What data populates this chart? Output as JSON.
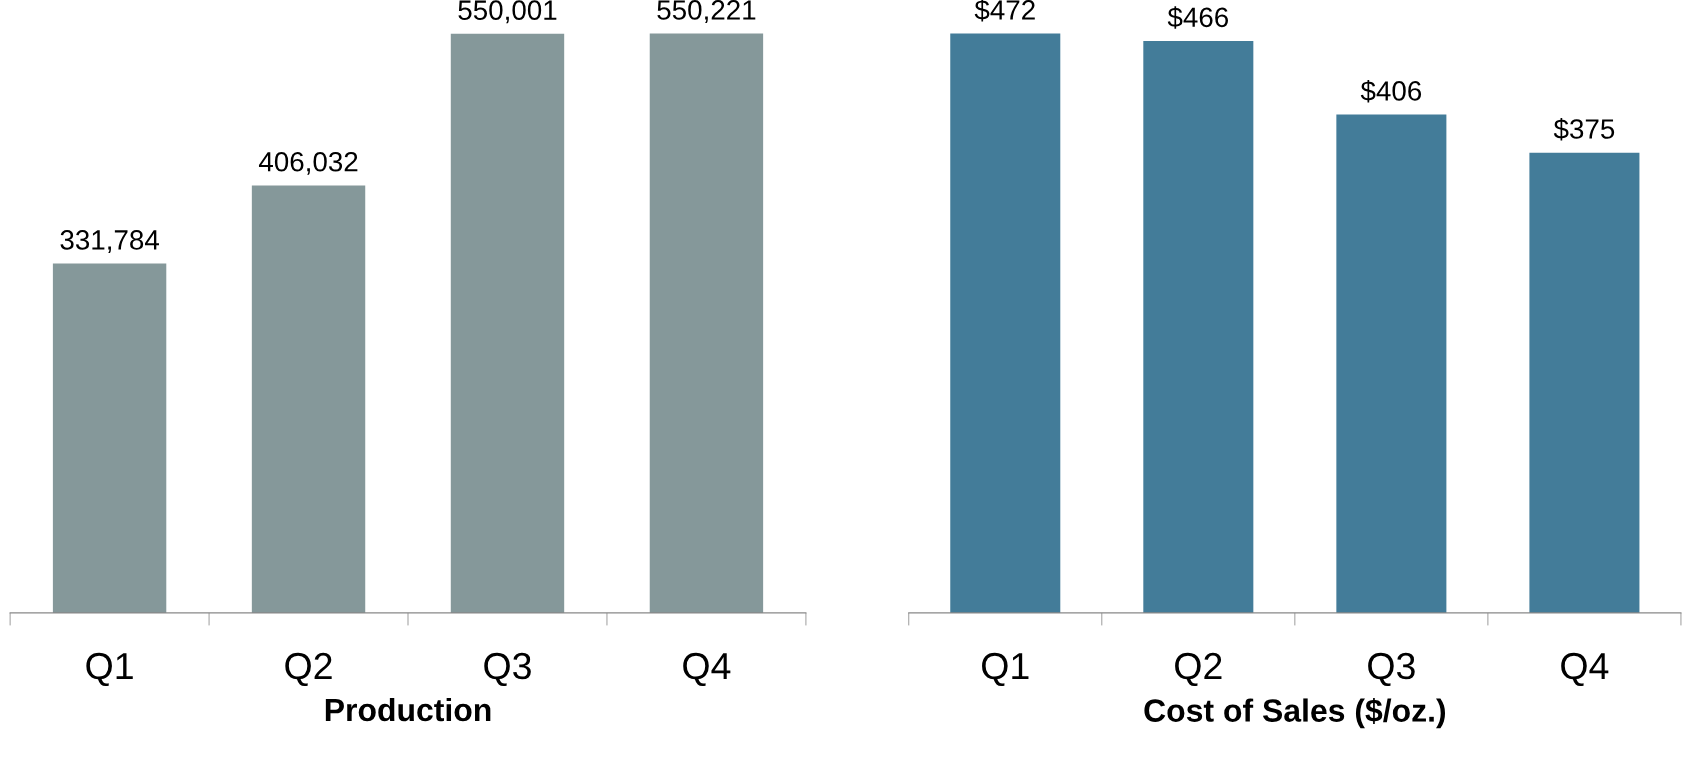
{
  "chart_data": [
    {
      "type": "bar",
      "xlabel": "Production",
      "categories": [
        "Q1",
        "Q2",
        "Q3",
        "Q4"
      ],
      "values": [
        331784,
        406032,
        550001,
        550221
      ],
      "value_labels": [
        "331,784",
        "406,032",
        "550,001",
        "550,221"
      ],
      "color": "#85989a",
      "grid": false,
      "legend": false
    },
    {
      "type": "bar",
      "xlabel": "Cost of Sales ($/oz.)",
      "categories": [
        "Q1",
        "Q2",
        "Q3",
        "Q4"
      ],
      "values": [
        472,
        466,
        406,
        375
      ],
      "value_labels": [
        "$472",
        "$466",
        "$406",
        "$375"
      ],
      "color": "#437c99",
      "grid": false,
      "legend": false
    }
  ]
}
